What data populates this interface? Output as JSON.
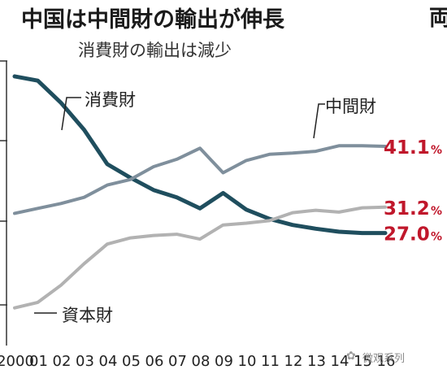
{
  "header": {
    "title": "中国は中間財の輸出が伸長",
    "cut_title": "両",
    "subtitle": "消費財の輸出は減少"
  },
  "chart_data": {
    "type": "line",
    "x": [
      "2000",
      "01",
      "02",
      "03",
      "04",
      "05",
      "06",
      "07",
      "08",
      "09",
      "10",
      "11",
      "12",
      "13",
      "14",
      "15",
      "16"
    ],
    "xtick_labels": [
      "2000",
      "01",
      "02",
      "03",
      "04",
      "05",
      "06",
      "07",
      "08",
      "09",
      "10",
      "11",
      "12",
      "13",
      "14",
      "15",
      "16"
    ],
    "ylim": [
      10,
      55
    ],
    "series": [
      {
        "name": "消費財",
        "color": "#1f4e5e",
        "width": 5,
        "values": [
          52.5,
          51.8,
          48.2,
          43.8,
          38.2,
          36.0,
          34.0,
          32.8,
          31.0,
          33.5,
          30.8,
          29.3,
          28.3,
          27.7,
          27.2,
          27.0,
          27.0
        ],
        "end_label": "27.0",
        "end_color": "#c0172b"
      },
      {
        "name": "中間財",
        "color": "#7f8f9c",
        "width": 4,
        "values": [
          30.2,
          31.0,
          31.8,
          32.8,
          34.8,
          35.7,
          37.8,
          39.0,
          40.8,
          36.8,
          38.8,
          39.8,
          40.0,
          40.3,
          41.2,
          41.2,
          41.1
        ],
        "end_label": "41.1",
        "end_color": "#c0172b"
      },
      {
        "name": "資本財",
        "color": "#b2b2b2",
        "width": 4,
        "values": [
          14.8,
          15.7,
          18.5,
          22.0,
          25.2,
          26.2,
          26.6,
          26.8,
          26.0,
          28.3,
          28.6,
          29.0,
          30.3,
          30.7,
          30.4,
          31.1,
          31.2
        ],
        "end_label": "31.2",
        "end_color": "#c0172b"
      }
    ],
    "percent_sign": "%"
  },
  "watermark": {
    "text": "微观系列"
  }
}
